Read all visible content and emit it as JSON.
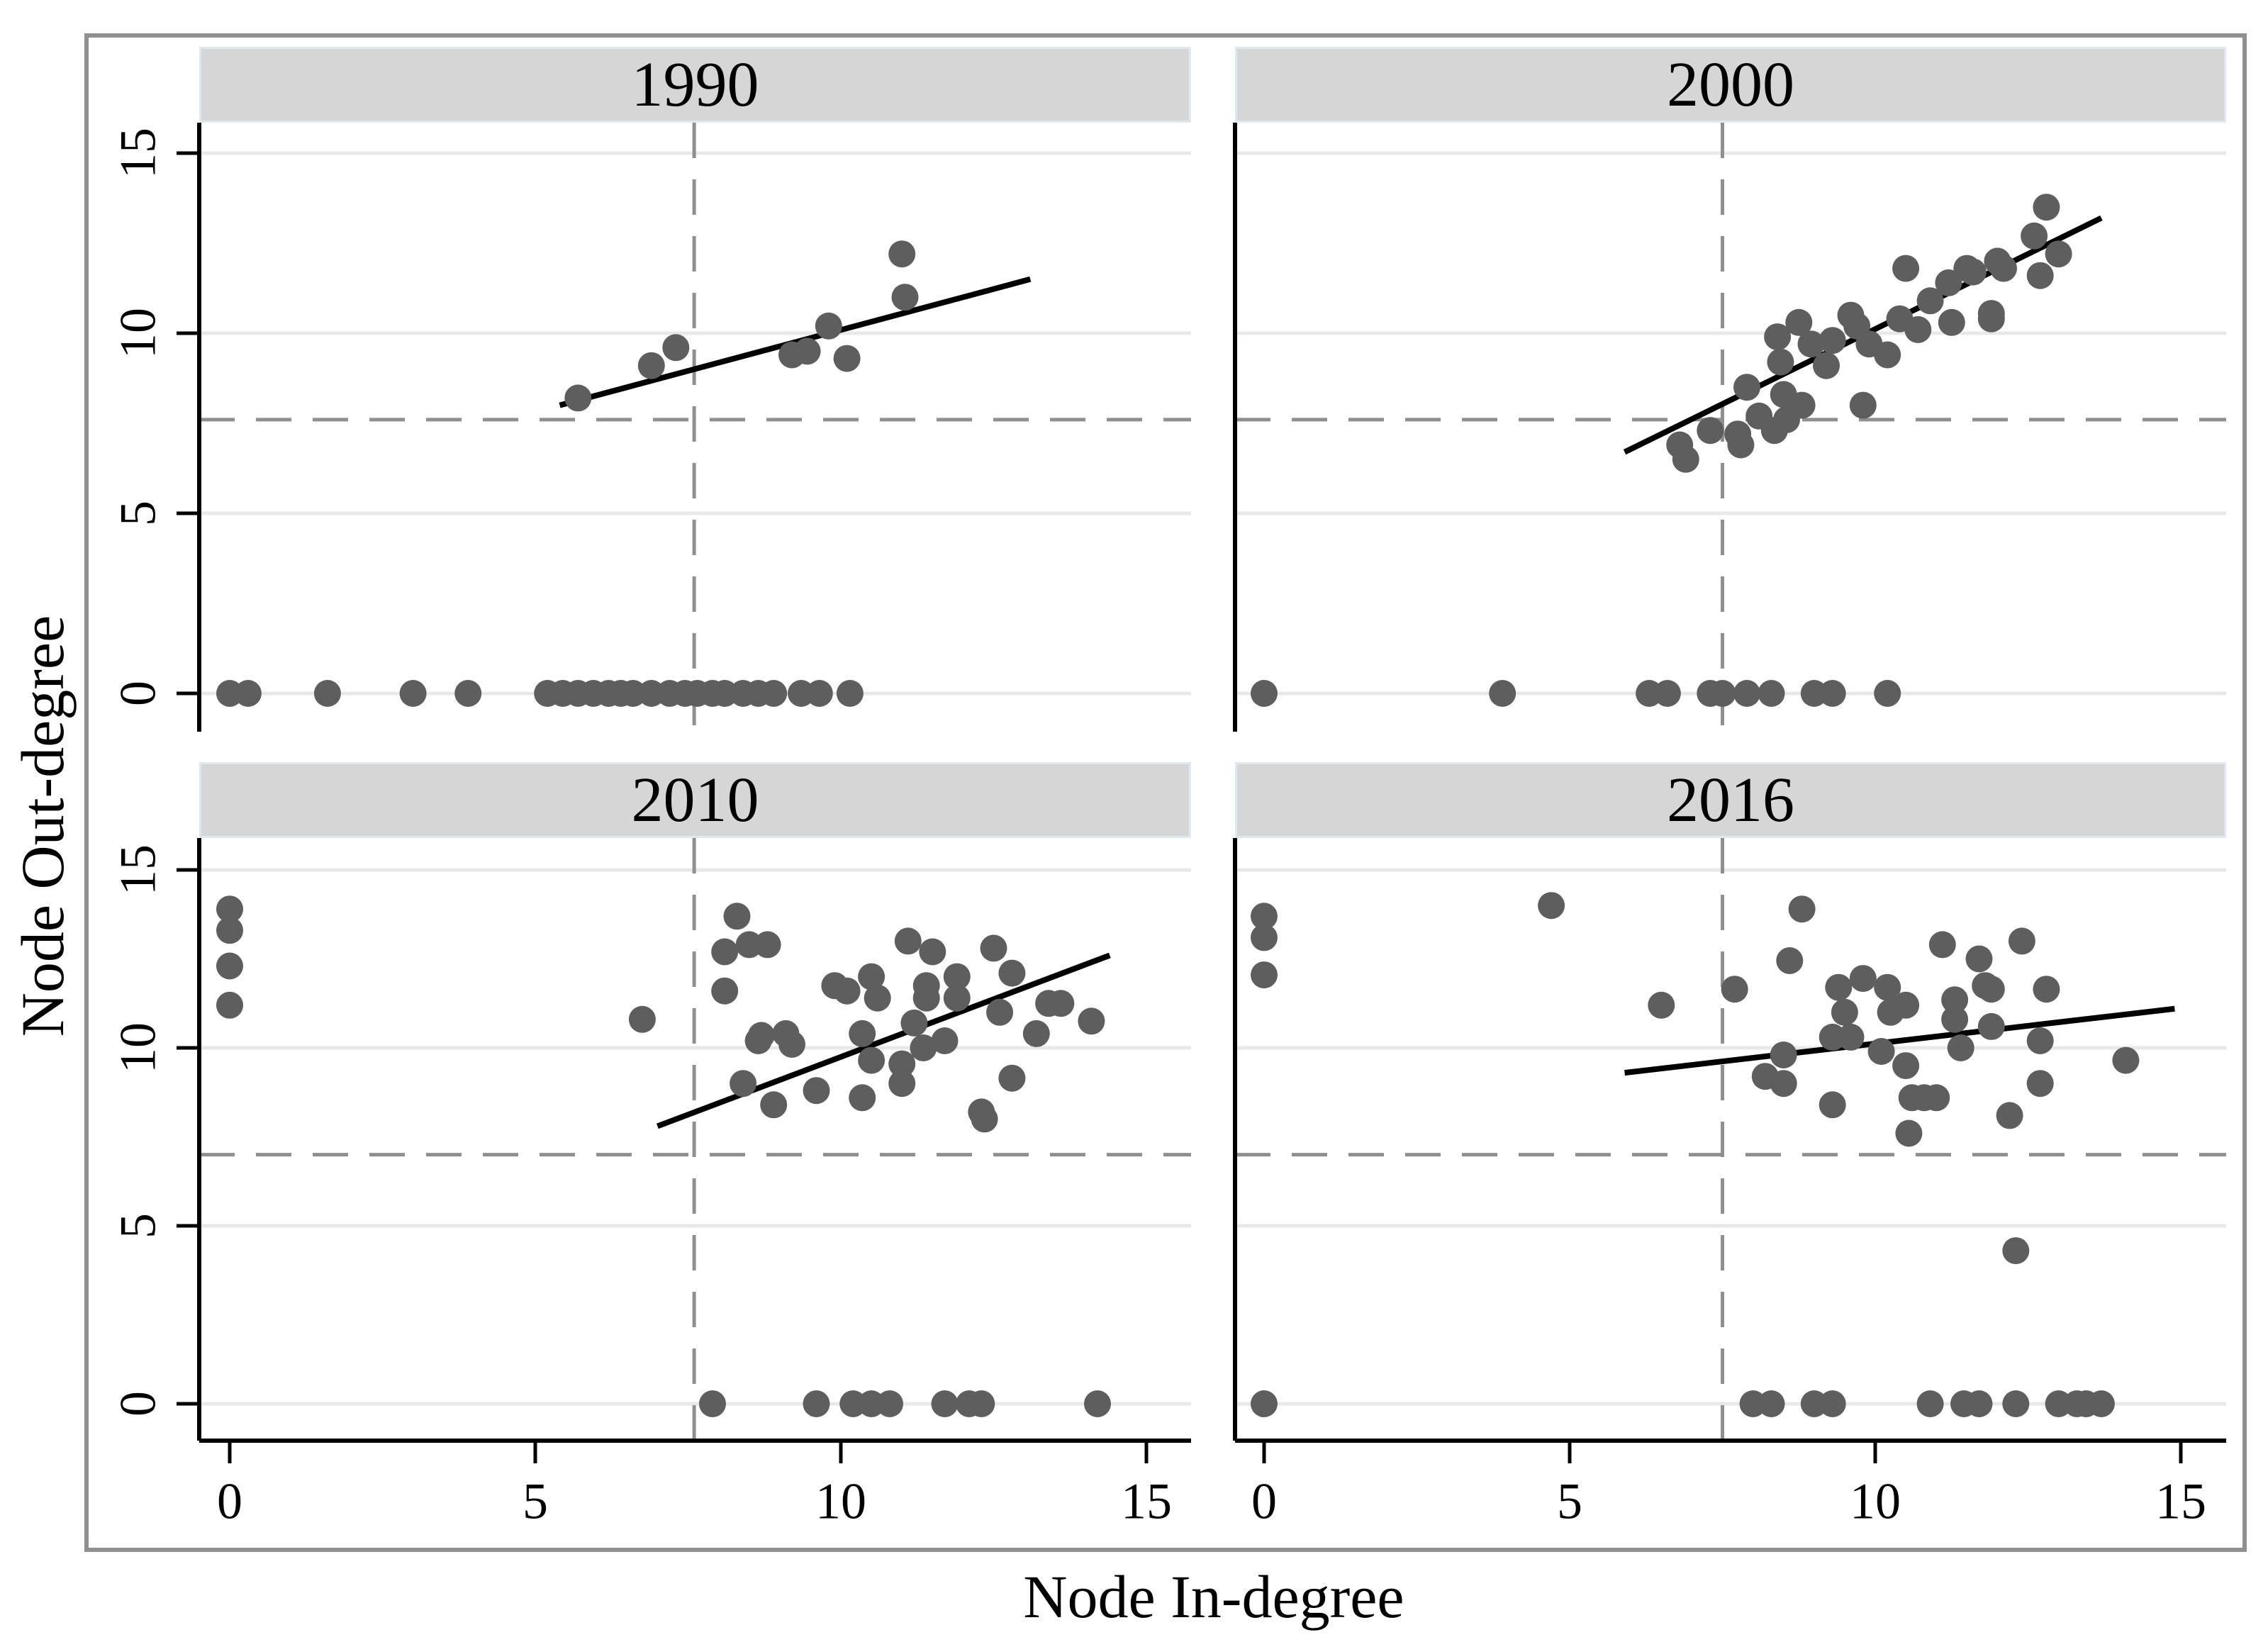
{
  "chart_data": {
    "type": "scatter",
    "title": "",
    "xlabel": "Node In-degree",
    "ylabel": "Node Out-degree",
    "x_ticks": [
      0,
      5,
      10,
      15
    ],
    "y_ticks": [
      0,
      5,
      10,
      15
    ],
    "xlim": [
      -0.6,
      15.8
    ],
    "ylim": [
      -1.1,
      15.9
    ],
    "grid": "horizontal-only",
    "legend": "none",
    "facet_layout": "2x2",
    "panels": [
      {
        "label": "1990",
        "refline_x": 7.6,
        "refline_y": 7.6,
        "fit": [
          5.4,
          8.0,
          13.1,
          11.5
        ],
        "points": [
          [
            0,
            0
          ],
          [
            0.3,
            0
          ],
          [
            1.6,
            0
          ],
          [
            3.0,
            0
          ],
          [
            3.9,
            0
          ],
          [
            5.2,
            0
          ],
          [
            5.45,
            0
          ],
          [
            5.7,
            0
          ],
          [
            5.95,
            0
          ],
          [
            6.2,
            0
          ],
          [
            6.4,
            0
          ],
          [
            6.6,
            0
          ],
          [
            6.9,
            0
          ],
          [
            7.2,
            0
          ],
          [
            7.45,
            0
          ],
          [
            7.65,
            0
          ],
          [
            7.9,
            0
          ],
          [
            8.1,
            0
          ],
          [
            8.4,
            0
          ],
          [
            8.65,
            0
          ],
          [
            8.9,
            0
          ],
          [
            9.35,
            0
          ],
          [
            9.65,
            0
          ],
          [
            10.15,
            0
          ],
          [
            5.7,
            8.2
          ],
          [
            6.9,
            9.1
          ],
          [
            7.3,
            9.6
          ],
          [
            9.2,
            9.4
          ],
          [
            9.45,
            9.5
          ],
          [
            9.8,
            10.2
          ],
          [
            10.1,
            9.3
          ],
          [
            11.0,
            12.2
          ],
          [
            11.05,
            11.0
          ]
        ]
      },
      {
        "label": "2000",
        "refline_x": 7.5,
        "refline_y": 7.6,
        "fit": [
          5.9,
          6.7,
          13.7,
          13.2
        ],
        "points": [
          [
            0,
            0
          ],
          [
            3.9,
            0
          ],
          [
            6.3,
            0
          ],
          [
            6.6,
            0
          ],
          [
            7.3,
            0
          ],
          [
            7.5,
            0
          ],
          [
            7.9,
            0
          ],
          [
            8.3,
            0
          ],
          [
            9.0,
            0
          ],
          [
            9.3,
            0
          ],
          [
            10.2,
            0
          ],
          [
            6.8,
            6.9
          ],
          [
            6.9,
            6.5
          ],
          [
            7.3,
            7.3
          ],
          [
            7.75,
            7.2
          ],
          [
            7.8,
            6.9
          ],
          [
            7.9,
            8.5
          ],
          [
            8.1,
            7.7
          ],
          [
            8.35,
            7.3
          ],
          [
            8.4,
            9.9
          ],
          [
            8.45,
            9.2
          ],
          [
            8.5,
            8.3
          ],
          [
            8.55,
            7.6
          ],
          [
            8.75,
            10.3
          ],
          [
            8.8,
            8.0
          ],
          [
            8.95,
            9.7
          ],
          [
            9.2,
            9.1
          ],
          [
            9.3,
            9.8
          ],
          [
            9.6,
            10.5
          ],
          [
            9.7,
            10.2
          ],
          [
            9.8,
            8.0
          ],
          [
            9.9,
            9.7
          ],
          [
            10.2,
            9.4
          ],
          [
            10.4,
            10.4
          ],
          [
            10.5,
            11.8
          ],
          [
            10.7,
            10.1
          ],
          [
            10.9,
            10.9
          ],
          [
            11.2,
            11.4
          ],
          [
            11.25,
            10.3
          ],
          [
            11.5,
            11.8
          ],
          [
            11.6,
            11.7
          ],
          [
            11.9,
            10.55
          ],
          [
            11.9,
            10.4
          ],
          [
            12.0,
            12.0
          ],
          [
            12.1,
            11.8
          ],
          [
            12.6,
            12.7
          ],
          [
            12.7,
            11.6
          ],
          [
            12.8,
            13.5
          ],
          [
            13.0,
            12.2
          ]
        ]
      },
      {
        "label": "2010",
        "refline_x": 7.6,
        "refline_y": 7.0,
        "fit": [
          7.0,
          7.8,
          14.4,
          12.6
        ],
        "points": [
          [
            7.9,
            0
          ],
          [
            9.6,
            0
          ],
          [
            10.2,
            0
          ],
          [
            10.5,
            0
          ],
          [
            10.8,
            0
          ],
          [
            11.7,
            0
          ],
          [
            12.1,
            0
          ],
          [
            12.3,
            0
          ],
          [
            14.2,
            0
          ],
          [
            0,
            13.9
          ],
          [
            0,
            13.3
          ],
          [
            0,
            12.3
          ],
          [
            0,
            11.2
          ],
          [
            6.75,
            10.8
          ],
          [
            8.3,
            13.7
          ],
          [
            8.1,
            12.7
          ],
          [
            8.5,
            12.9
          ],
          [
            8.8,
            12.9
          ],
          [
            8.1,
            11.6
          ],
          [
            8.65,
            10.2
          ],
          [
            8.7,
            10.35
          ],
          [
            9.1,
            10.4
          ],
          [
            9.2,
            10.1
          ],
          [
            8.4,
            9.0
          ],
          [
            8.9,
            8.4
          ],
          [
            9.6,
            8.8
          ],
          [
            9.9,
            11.75
          ],
          [
            10.1,
            11.6
          ],
          [
            10.5,
            12.0
          ],
          [
            10.6,
            11.4
          ],
          [
            10.35,
            10.4
          ],
          [
            10.5,
            9.65
          ],
          [
            10.35,
            8.6
          ],
          [
            11.1,
            13.0
          ],
          [
            11.5,
            12.7
          ],
          [
            11.4,
            11.75
          ],
          [
            11.2,
            10.7
          ],
          [
            11.35,
            10.0
          ],
          [
            11.0,
            9.55
          ],
          [
            11.0,
            9.0
          ],
          [
            12.5,
            12.8
          ],
          [
            11.9,
            12.0
          ],
          [
            12.8,
            12.1
          ],
          [
            11.4,
            11.4
          ],
          [
            11.9,
            11.4
          ],
          [
            12.6,
            11.0
          ],
          [
            13.4,
            11.25
          ],
          [
            13.6,
            11.25
          ],
          [
            13.2,
            10.4
          ],
          [
            14.1,
            10.75
          ],
          [
            11.7,
            10.2
          ],
          [
            12.8,
            9.15
          ],
          [
            12.3,
            8.2
          ],
          [
            12.35,
            8.0
          ]
        ]
      },
      {
        "label": "2016",
        "refline_x": 7.5,
        "refline_y": 7.0,
        "fit": [
          5.9,
          9.3,
          14.9,
          11.1
        ],
        "points": [
          [
            0,
            0
          ],
          [
            8.0,
            0
          ],
          [
            8.3,
            0
          ],
          [
            9.0,
            0
          ],
          [
            9.3,
            0
          ],
          [
            10.9,
            0
          ],
          [
            11.45,
            0
          ],
          [
            11.7,
            0
          ],
          [
            12.3,
            0
          ],
          [
            13.0,
            0
          ],
          [
            13.3,
            0
          ],
          [
            13.45,
            0
          ],
          [
            13.7,
            0
          ],
          [
            0,
            13.7
          ],
          [
            0,
            13.1
          ],
          [
            0,
            12.05
          ],
          [
            4.7,
            14.0
          ],
          [
            6.5,
            11.2
          ],
          [
            7.7,
            11.65
          ],
          [
            8.6,
            12.45
          ],
          [
            8.8,
            13.9
          ],
          [
            9.4,
            11.7
          ],
          [
            9.8,
            11.95
          ],
          [
            9.5,
            11.0
          ],
          [
            10.2,
            11.7
          ],
          [
            10.25,
            11.0
          ],
          [
            10.5,
            11.2
          ],
          [
            9.3,
            10.3
          ],
          [
            9.6,
            10.3
          ],
          [
            10.1,
            9.9
          ],
          [
            8.5,
            9.8
          ],
          [
            8.2,
            9.2
          ],
          [
            8.5,
            9.0
          ],
          [
            9.3,
            8.4
          ],
          [
            10.5,
            9.5
          ],
          [
            10.6,
            8.6
          ],
          [
            10.8,
            8.6
          ],
          [
            11.0,
            8.6
          ],
          [
            10.55,
            7.6
          ],
          [
            11.1,
            12.9
          ],
          [
            11.7,
            12.5
          ],
          [
            11.3,
            11.35
          ],
          [
            11.3,
            10.8
          ],
          [
            11.4,
            10.0
          ],
          [
            11.8,
            11.75
          ],
          [
            12.4,
            13.0
          ],
          [
            11.9,
            11.65
          ],
          [
            12.8,
            11.65
          ],
          [
            11.9,
            10.6
          ],
          [
            12.7,
            10.2
          ],
          [
            14.1,
            9.65
          ],
          [
            12.7,
            9.0
          ],
          [
            12.2,
            8.1
          ],
          [
            12.3,
            4.3
          ]
        ]
      }
    ]
  },
  "colors": {
    "point": "#5e5e5e",
    "grid": "#e8e8e8",
    "refline": "#8f8f8f",
    "fit_line": "#000000",
    "axis": "#000000",
    "header_bg": "#d6d6d6",
    "header_border": "#dde8f1",
    "frame": "#8f8f8f",
    "text": "#000000",
    "background": "#ffffff"
  }
}
